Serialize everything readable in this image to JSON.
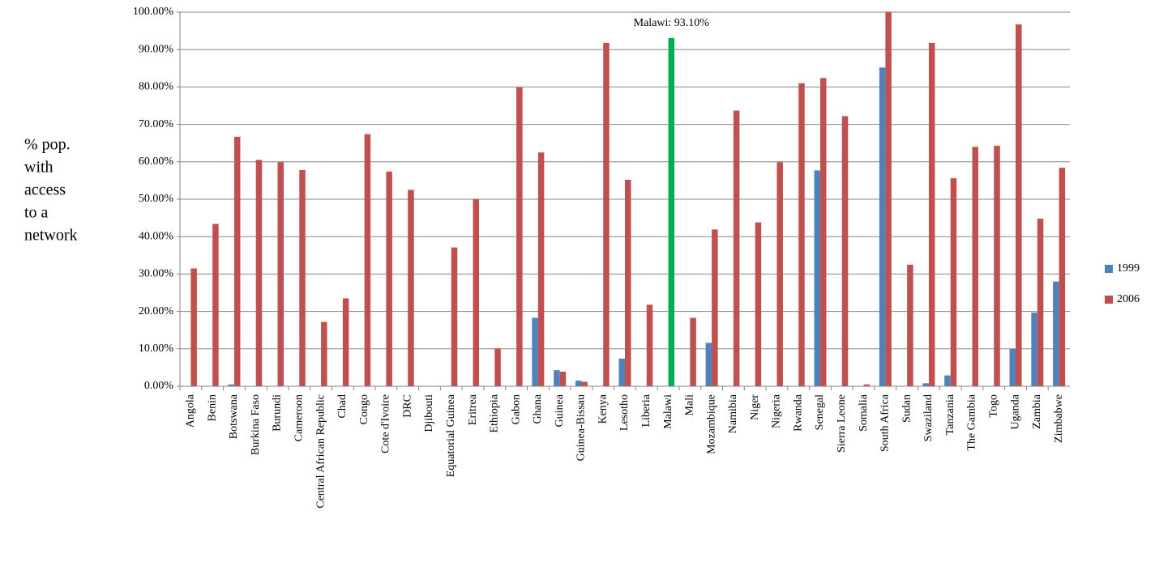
{
  "chart_data": {
    "type": "bar",
    "y_label": [
      "% pop.",
      "with",
      "access",
      "to a",
      "network"
    ],
    "annotation": "Malawi: 93.10%",
    "categories": [
      "Angola",
      "Benin",
      "Botswana",
      "Burkina Faso",
      "Burundi",
      "Cameroon",
      "Central African Republic",
      "Chad",
      "Congo",
      "Cote d'Ivoire",
      "DRC",
      "Djibouti",
      "Equatorial Guinea",
      "Eritrea",
      "Ethiopia",
      "Gabon",
      "Ghana",
      "Guinea",
      "Guinea-Bissau",
      "Kenya",
      "Lesotho",
      "Liberia",
      "Malawi",
      "Mali",
      "Mozambique",
      "Namibia",
      "Niger",
      "Nigeria",
      "Rwanda",
      "Senegal",
      "Sierra Leone",
      "Somalia",
      "South Africa",
      "Sudan",
      "Swaziland",
      "Tanzania",
      "The Gambia",
      "Togo",
      "Uganda",
      "Zambia",
      "Zimbabwe"
    ],
    "series": [
      {
        "name": "1999",
        "color": "#4f81bd",
        "values": [
          0,
          0,
          0.5,
          0,
          0,
          0,
          0,
          0,
          0,
          0,
          0,
          0,
          0,
          0,
          0,
          0,
          18.3,
          4.3,
          1.5,
          0,
          7.4,
          0,
          0,
          0,
          11.6,
          0,
          0,
          0,
          0,
          57.7,
          0,
          0,
          85.2,
          0,
          0.8,
          2.9,
          0,
          0,
          10,
          19.7,
          28
        ]
      },
      {
        "name": "2006",
        "color": "#c0504d",
        "values": [
          31.5,
          43.4,
          66.7,
          60.5,
          59.9,
          57.8,
          17.2,
          23.5,
          67.4,
          57.4,
          52.5,
          0,
          37.1,
          50,
          10.1,
          79.9,
          62.5,
          3.9,
          1.2,
          91.8,
          55.2,
          21.8,
          93.1,
          18.3,
          41.9,
          73.7,
          43.8,
          59.9,
          81,
          82.4,
          72.2,
          0.5,
          100,
          32.5,
          91.8,
          55.6,
          64,
          64.3,
          96.7,
          44.8,
          58.4
        ],
        "colors": [
          "#c0504d",
          "#c0504d",
          "#c0504d",
          "#c0504d",
          "#c0504d",
          "#c0504d",
          "#c0504d",
          "#c0504d",
          "#c0504d",
          "#c0504d",
          "#c0504d",
          "#c0504d",
          "#c0504d",
          "#c0504d",
          "#c0504d",
          "#c0504d",
          "#c0504d",
          "#c0504d",
          "#c0504d",
          "#c0504d",
          "#c0504d",
          "#c0504d",
          "#00b050",
          "#c0504d",
          "#c0504d",
          "#c0504d",
          "#c0504d",
          "#c0504d",
          "#c0504d",
          "#c0504d",
          "#c0504d",
          "#c0504d",
          "#c0504d",
          "#c0504d",
          "#c0504d",
          "#c0504d",
          "#c0504d",
          "#c0504d",
          "#c0504d",
          "#c0504d",
          "#c0504d"
        ]
      }
    ],
    "ylim": [
      0,
      100
    ],
    "yticks": [
      {
        "value": 0,
        "label": "0.00%"
      },
      {
        "value": 10,
        "label": "10.00%"
      },
      {
        "value": 20,
        "label": "20.00%"
      },
      {
        "value": 30,
        "label": "30.00%"
      },
      {
        "value": 40,
        "label": "40.00%"
      },
      {
        "value": 50,
        "label": "50.00%"
      },
      {
        "value": 60,
        "label": "60.00%"
      },
      {
        "value": 70,
        "label": "70.00%"
      },
      {
        "value": 80,
        "label": "80.00%"
      },
      {
        "value": 90,
        "label": "90.00%"
      },
      {
        "value": 100,
        "label": "100.00%"
      }
    ],
    "grid": true,
    "legend": "right"
  }
}
